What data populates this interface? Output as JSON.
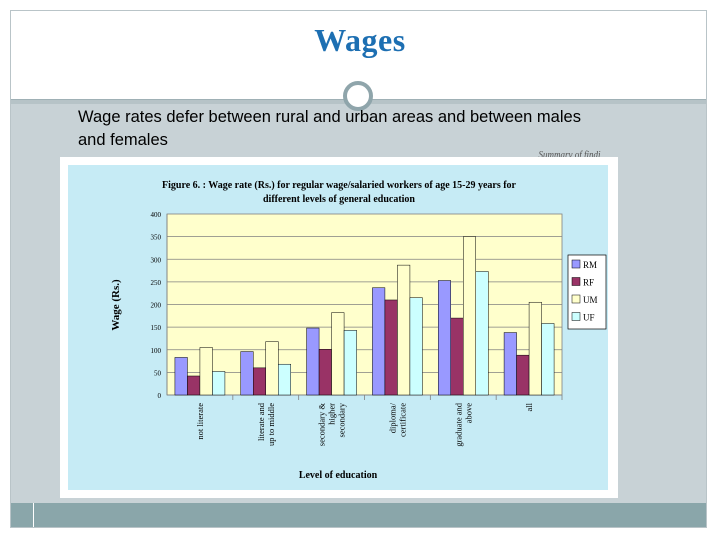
{
  "slide": {
    "title": "Wages",
    "subtitle": "Wage rates defer between rural and urban areas and between males and females",
    "cut_text": "Summary of findi"
  },
  "colors": {
    "RM": "#9999ff",
    "RF": "#993366",
    "UM": "#ffffcc",
    "UF": "#ccffff",
    "plot_bg": "#ffffcc",
    "chart_bg": "#c6ebf5",
    "title": "#1d6fb2"
  },
  "chart_data": {
    "type": "bar",
    "title": "Figure 6. : Wage rate (Rs.) for regular wage/salaried workers of age 15-29 years for different levels of general education",
    "title_line1": "Figure  6. : Wage rate (Rs.) for regular wage/salaried workers of age 15-29 years for",
    "title_line2": "different levels of general education",
    "xlabel": "Level of education",
    "ylabel": "Wage (Rs.)",
    "ylim": [
      0,
      400
    ],
    "yticks": [
      0,
      50,
      100,
      150,
      200,
      250,
      300,
      350,
      400
    ],
    "grid": true,
    "legend_position": "right",
    "categories": [
      [
        "not literate"
      ],
      [
        "literate and",
        "up to middle"
      ],
      [
        "secondary &",
        "higher",
        "secondary"
      ],
      [
        "diploma/",
        "certificate"
      ],
      [
        "graduate and",
        "above"
      ],
      [
        "all"
      ]
    ],
    "series": [
      {
        "name": "RM",
        "values": [
          83,
          96,
          148,
          237,
          253,
          138
        ]
      },
      {
        "name": "RF",
        "values": [
          42,
          60,
          101,
          210,
          170,
          88
        ]
      },
      {
        "name": "UM",
        "values": [
          105,
          118,
          182,
          287,
          350,
          205
        ]
      },
      {
        "name": "UF",
        "values": [
          52,
          68,
          143,
          215,
          273,
          158
        ]
      }
    ]
  }
}
